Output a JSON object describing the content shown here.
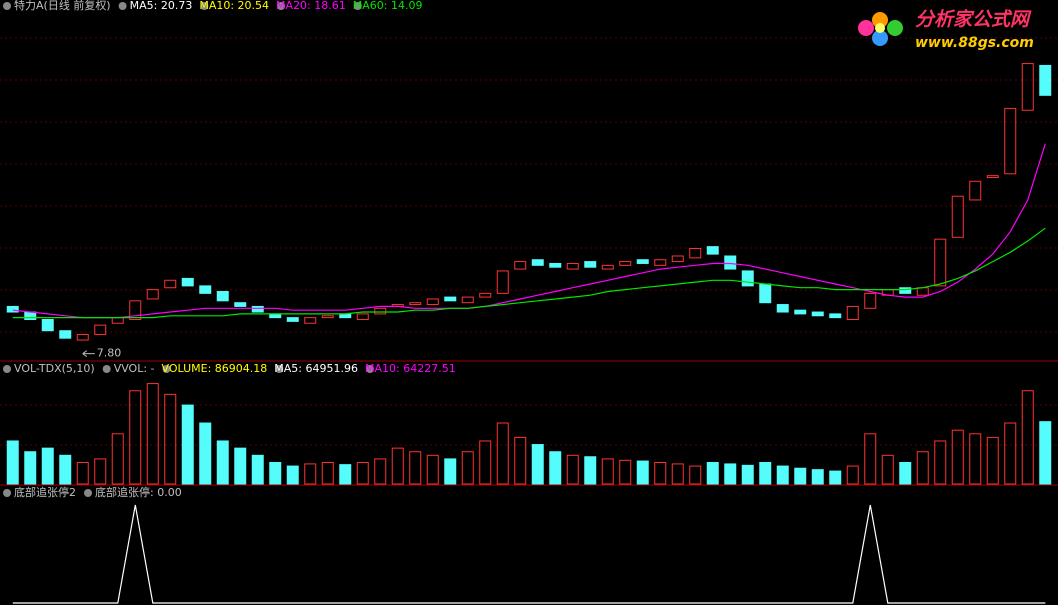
{
  "chart_data": [
    {
      "type": "candlestick",
      "legend": [
        {
          "text": "特力A(日线 前复权)",
          "color": "#c0c0c0"
        },
        {
          "text": "MA5: 20.73",
          "color": "#ffffff"
        },
        {
          "text": "MA10: 20.54",
          "color": "#ffff00"
        },
        {
          "text": "MA20: 18.61",
          "color": "#ff00ff"
        },
        {
          "text": "MA60: 14.09",
          "color": "#00e600"
        }
      ],
      "open": [
        9.9,
        9.6,
        9.2,
        8.6,
        8.1,
        8.4,
        9.0,
        9.2,
        10.3,
        10.9,
        11.4,
        11.0,
        10.7,
        10.1,
        9.9,
        9.5,
        9.3,
        9.0,
        9.3,
        9.5,
        9.2,
        9.5,
        9.9,
        10.0,
        10.0,
        10.4,
        10.1,
        10.4,
        10.6,
        11.9,
        12.4,
        12.2,
        11.9,
        12.3,
        11.9,
        12.1,
        12.4,
        12.1,
        12.3,
        12.5,
        13.1,
        12.6,
        11.8,
        11.1,
        10.0,
        9.7,
        9.6,
        9.5,
        9.2,
        9.8,
        10.5,
        10.9,
        10.5,
        11.0,
        13.6,
        15.6,
        16.8,
        17.0,
        20.4,
        22.8
      ],
      "close": [
        9.6,
        9.2,
        8.6,
        8.2,
        8.4,
        8.9,
        9.3,
        10.2,
        10.8,
        11.3,
        11.0,
        10.6,
        10.2,
        9.9,
        9.6,
        9.3,
        9.1,
        9.3,
        9.4,
        9.3,
        9.5,
        9.8,
        10.0,
        10.1,
        10.3,
        10.2,
        10.4,
        10.6,
        11.8,
        12.3,
        12.1,
        12.0,
        12.2,
        12.0,
        12.1,
        12.3,
        12.2,
        12.4,
        12.6,
        13.0,
        12.7,
        11.9,
        11.0,
        10.1,
        9.6,
        9.5,
        9.4,
        9.3,
        9.9,
        10.6,
        10.8,
        10.6,
        10.9,
        13.5,
        15.8,
        16.6,
        16.9,
        20.5,
        22.9,
        21.2
      ],
      "lines": [
        {
          "color": "#ff00ff",
          "values": [
            9.7,
            9.6,
            9.5,
            9.4,
            9.3,
            9.3,
            9.3,
            9.4,
            9.5,
            9.6,
            9.7,
            9.8,
            9.8,
            9.8,
            9.8,
            9.8,
            9.7,
            9.7,
            9.7,
            9.7,
            9.8,
            9.9,
            9.9,
            9.8,
            9.8,
            9.8,
            9.8,
            9.9,
            10.1,
            10.3,
            10.5,
            10.7,
            10.9,
            11.1,
            11.3,
            11.5,
            11.7,
            11.9,
            12.0,
            12.1,
            12.2,
            12.2,
            12.1,
            11.9,
            11.7,
            11.5,
            11.3,
            11.1,
            10.9,
            10.7,
            10.5,
            10.4,
            10.4,
            10.7,
            11.2,
            11.9,
            12.7,
            13.9,
            15.6,
            18.61
          ]
        },
        {
          "color": "#00e600",
          "values": [
            9.3,
            9.3,
            9.3,
            9.3,
            9.3,
            9.3,
            9.3,
            9.3,
            9.3,
            9.4,
            9.4,
            9.4,
            9.4,
            9.5,
            9.5,
            9.5,
            9.5,
            9.5,
            9.5,
            9.5,
            9.6,
            9.6,
            9.6,
            9.7,
            9.7,
            9.8,
            9.8,
            9.9,
            10.0,
            10.1,
            10.2,
            10.3,
            10.4,
            10.5,
            10.7,
            10.8,
            10.9,
            11.0,
            11.1,
            11.2,
            11.3,
            11.3,
            11.2,
            11.1,
            11.0,
            10.9,
            10.9,
            10.8,
            10.8,
            10.8,
            10.8,
            10.8,
            10.9,
            11.1,
            11.4,
            11.8,
            12.3,
            12.8,
            13.4,
            14.09
          ]
        }
      ],
      "annotation": {
        "value": 7.8,
        "label": "7.80"
      },
      "up_color": "#ff3232",
      "down_color": "#54fcfc",
      "ylim": [
        7.3,
        25.5
      ]
    },
    {
      "type": "bar",
      "legend": [
        {
          "text": "VOL-TDX(5,10)",
          "color": "#c0c0c0"
        },
        {
          "text": "VVOL: -",
          "color": "#c0c0c0"
        },
        {
          "text": "VOLUME: 86904.18",
          "color": "#ffff00"
        },
        {
          "text": "MA5: 64951.96",
          "color": "#ffffff"
        },
        {
          "text": "MA10: 64227.51",
          "color": "#ff00ff"
        }
      ],
      "values": [
        60000,
        45000,
        50000,
        40000,
        30000,
        35000,
        70000,
        130000,
        140000,
        125000,
        110000,
        85000,
        60000,
        50000,
        40000,
        30000,
        25000,
        28000,
        30000,
        27000,
        30000,
        35000,
        50000,
        45000,
        40000,
        35000,
        45000,
        60000,
        85000,
        65000,
        55000,
        45000,
        40000,
        38000,
        35000,
        33000,
        32000,
        30000,
        28000,
        25000,
        30000,
        28000,
        26000,
        30000,
        25000,
        22000,
        20000,
        18000,
        25000,
        70000,
        40000,
        30000,
        45000,
        60000,
        75000,
        70000,
        65000,
        85000,
        130000,
        86904.18
      ],
      "ylim": [
        0,
        145000
      ]
    },
    {
      "type": "line",
      "legend": [
        {
          "text": "底部追张停2",
          "color": "#c0c0c0"
        },
        {
          "text": "底部追张停: 0.00",
          "color": "#c0c0c0"
        }
      ],
      "values": [
        0,
        0,
        0,
        0,
        0,
        0,
        0,
        1,
        0,
        0,
        0,
        0,
        0,
        0,
        0,
        0,
        0,
        0,
        0,
        0,
        0,
        0,
        0,
        0,
        0,
        0,
        0,
        0,
        0,
        0,
        0,
        0,
        0,
        0,
        0,
        0,
        0,
        0,
        0,
        0,
        0,
        0,
        0,
        0,
        0,
        0,
        0,
        0,
        0,
        1,
        0,
        0,
        0,
        0,
        0,
        0,
        0,
        0,
        0,
        0
      ],
      "color": "#ffffff",
      "ylim": [
        0,
        1
      ]
    }
  ],
  "watermark": {
    "title": "分析家公式网",
    "url": "www.88gs.com"
  }
}
